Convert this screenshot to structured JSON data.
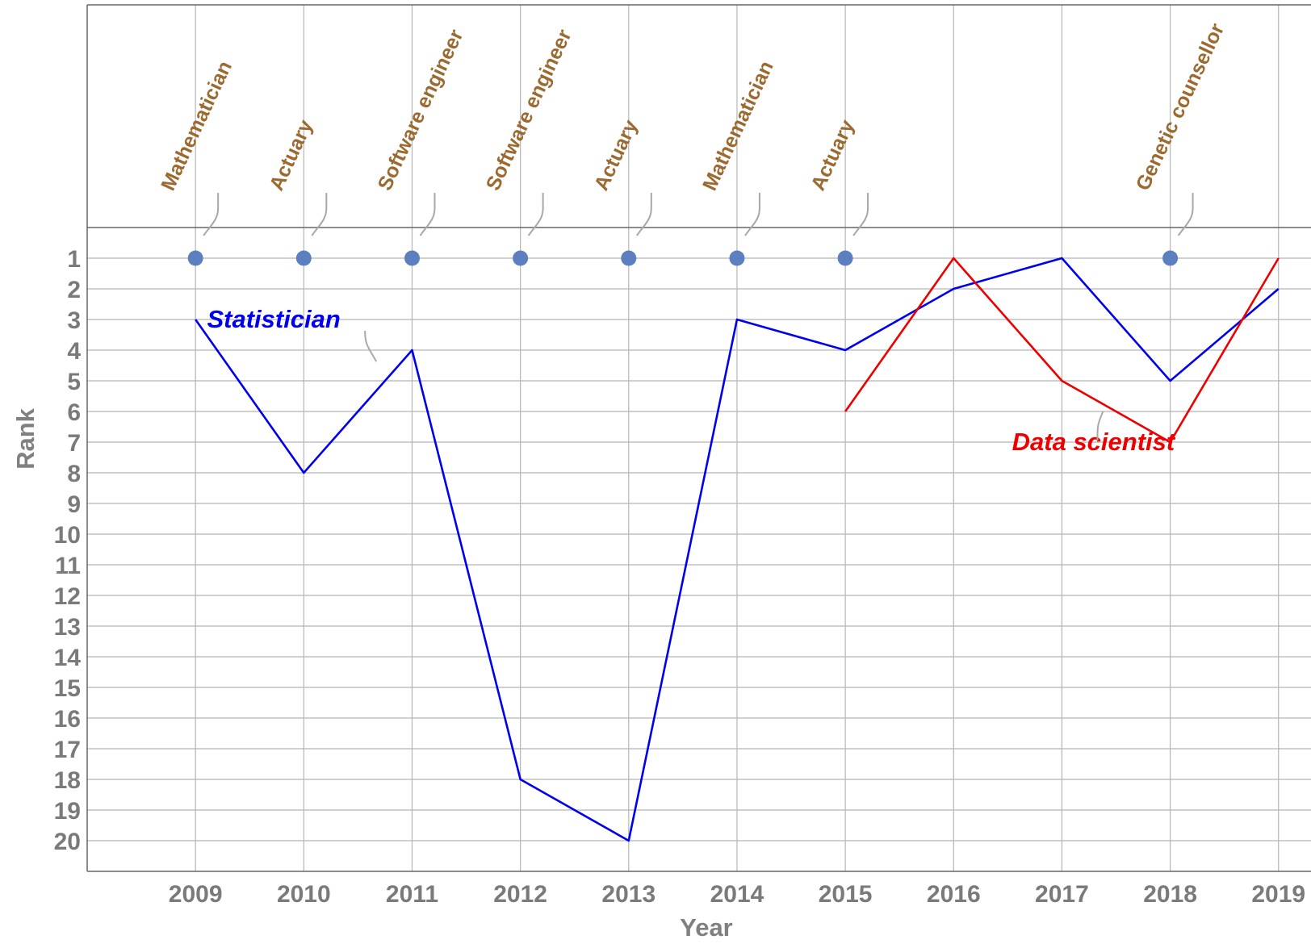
{
  "chart_data": {
    "type": "line",
    "x_label": "Year",
    "y_label": "Rank",
    "x": [
      2009,
      2010,
      2011,
      2012,
      2013,
      2014,
      2015,
      2016,
      2017,
      2018,
      2019
    ],
    "series": [
      {
        "name": "Statistician",
        "color": "#0000ee",
        "values": [
          3,
          8,
          4,
          18,
          20,
          3,
          4,
          2,
          1,
          5,
          2
        ]
      },
      {
        "name": "Data scientist",
        "color": "#ee0000",
        "values": [
          null,
          null,
          null,
          null,
          null,
          null,
          6,
          1,
          5,
          7,
          1
        ]
      }
    ],
    "top_jobs": {
      "color": "#5b7fbf",
      "label_color": "#9c6a30",
      "labels": [
        "Mathematician",
        "Actuary",
        "Software engineer",
        "Software engineer",
        "Actuary",
        "Mathematician",
        "Actuary",
        null,
        null,
        "Genetic counsellor",
        null
      ],
      "values": [
        1,
        1,
        1,
        1,
        1,
        1,
        1,
        null,
        null,
        1,
        null
      ]
    },
    "xlim": [
      2008,
      2019.3
    ],
    "ylim": [
      0,
      21
    ],
    "y_inverted": true,
    "xticks": [
      2009,
      2010,
      2011,
      2012,
      2013,
      2014,
      2015,
      2016,
      2017,
      2018,
      2019
    ],
    "yticks": [
      1,
      2,
      3,
      4,
      5,
      6,
      7,
      8,
      9,
      10,
      11,
      12,
      13,
      14,
      15,
      16,
      17,
      18,
      19,
      20
    ],
    "grid": true
  }
}
